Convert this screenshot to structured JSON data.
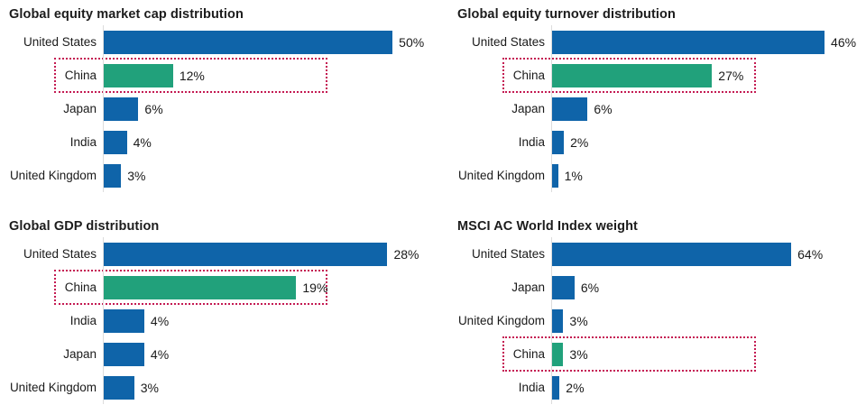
{
  "colors": {
    "bar_blue": "#0F64A9",
    "bar_green": "#21A17B",
    "highlight_border": "#C41A52",
    "axis_line": "#DCDCDC",
    "text": "#1A1A1A"
  },
  "highlighted_category": "China",
  "chart_data": [
    {
      "type": "bar",
      "orientation": "horizontal",
      "title": "Global equity market cap distribution",
      "value_suffix": "%",
      "xlim": [
        0,
        57
      ],
      "grid": false,
      "bars": [
        {
          "label": "United States",
          "value": 50,
          "display": "50%",
          "highlight": false
        },
        {
          "label": "China",
          "value": 12,
          "display": "12%",
          "highlight": true
        },
        {
          "label": "Japan",
          "value": 6,
          "display": "6%",
          "highlight": false
        },
        {
          "label": "India",
          "value": 4,
          "display": "4%",
          "highlight": false
        },
        {
          "label": "United Kingdom",
          "value": 3,
          "display": "3%",
          "highlight": false
        }
      ]
    },
    {
      "type": "bar",
      "orientation": "horizontal",
      "title": "Global equity turnover distribution",
      "value_suffix": "%",
      "xlim": [
        0,
        53
      ],
      "grid": false,
      "bars": [
        {
          "label": "United States",
          "value": 46,
          "display": "46%",
          "highlight": false
        },
        {
          "label": "China",
          "value": 27,
          "display": "27%",
          "highlight": true
        },
        {
          "label": "Japan",
          "value": 6,
          "display": "6%",
          "highlight": false
        },
        {
          "label": "India",
          "value": 2,
          "display": "2%",
          "highlight": false
        },
        {
          "label": "United Kingdom",
          "value": 1,
          "display": "1%",
          "highlight": false
        }
      ]
    },
    {
      "type": "bar",
      "orientation": "horizontal",
      "title": "Global GDP distribution",
      "value_suffix": "%",
      "xlim": [
        0,
        32.5
      ],
      "grid": false,
      "bars": [
        {
          "label": "United States",
          "value": 28,
          "display": "28%",
          "highlight": false
        },
        {
          "label": "China",
          "value": 19,
          "display": "19%",
          "highlight": true
        },
        {
          "label": "India",
          "value": 4,
          "display": "4%",
          "highlight": false
        },
        {
          "label": "Japan",
          "value": 4,
          "display": "4%",
          "highlight": false
        },
        {
          "label": "United Kingdom",
          "value": 3,
          "display": "3%",
          "highlight": false
        }
      ]
    },
    {
      "type": "bar",
      "orientation": "horizontal",
      "title": "MSCI AC World Index weight",
      "value_suffix": "%",
      "xlim": [
        0,
        84
      ],
      "grid": false,
      "bars": [
        {
          "label": "United States",
          "value": 64,
          "display": "64%",
          "highlight": false
        },
        {
          "label": "Japan",
          "value": 6,
          "display": "6%",
          "highlight": false
        },
        {
          "label": "United Kingdom",
          "value": 3,
          "display": "3%",
          "highlight": false
        },
        {
          "label": "China",
          "value": 3,
          "display": "3%",
          "highlight": true
        },
        {
          "label": "India",
          "value": 2,
          "display": "2%",
          "highlight": false
        }
      ]
    }
  ]
}
